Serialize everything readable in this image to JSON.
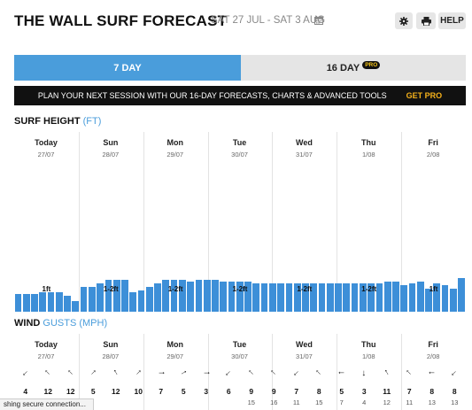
{
  "header": {
    "title": "THE WALL SURF FORECAST",
    "dates": "SAT 27 JUL - SAT 3 AUG",
    "settings_icon": "gear-icon",
    "print_icon": "printer-icon",
    "help_label": "HELP"
  },
  "tabs": [
    {
      "label": "7 DAY",
      "active": true
    },
    {
      "label": "16 DAY",
      "badge": "PRO",
      "active": false
    }
  ],
  "banner": {
    "text": "PLAN YOUR NEXT SESSION WITH OUR 16-DAY FORECASTS, CHARTS & ADVANCED TOOLS",
    "cta": "GET PRO"
  },
  "surf": {
    "title": "SURF HEIGHT",
    "unit": "(FT)"
  },
  "wind": {
    "title": "WIND",
    "unit": "GUSTS (MPH)"
  },
  "days": [
    {
      "name": "Today",
      "date": "27/07",
      "height": "1ft"
    },
    {
      "name": "Sun",
      "date": "28/07",
      "height": "1-2ft"
    },
    {
      "name": "Mon",
      "date": "29/07",
      "height": "1-2ft"
    },
    {
      "name": "Tue",
      "date": "30/07",
      "height": "1-2ft"
    },
    {
      "name": "Wed",
      "date": "31/07",
      "height": "1-2ft"
    },
    {
      "name": "Thu",
      "date": "1/08",
      "height": "1-2ft"
    },
    {
      "name": "Fri",
      "date": "2/08",
      "height": "1ft"
    }
  ],
  "chart_data": {
    "type": "bar",
    "title": "SURF HEIGHT (FT)",
    "values": [
      1.0,
      1.0,
      1.0,
      1.1,
      1.1,
      1.1,
      0.9,
      0.6,
      1.4,
      1.4,
      1.6,
      1.8,
      1.8,
      1.8,
      1.1,
      1.2,
      1.4,
      1.6,
      1.8,
      1.8,
      1.8,
      1.7,
      1.8,
      1.8,
      1.8,
      1.7,
      1.7,
      1.7,
      1.7,
      1.6,
      1.6,
      1.6,
      1.6,
      1.6,
      1.6,
      1.6,
      1.6,
      1.6,
      1.6,
      1.6,
      1.6,
      1.6,
      1.6,
      1.6,
      1.6,
      1.7,
      1.7,
      1.5,
      1.6,
      1.7,
      1.3,
      1.6,
      1.5,
      1.3,
      1.9
    ],
    "ylim": [
      0,
      10
    ]
  },
  "wind_rows": {
    "directions": [
      225,
      315,
      315,
      45,
      330,
      45,
      90,
      60,
      90,
      225,
      315,
      315,
      225,
      315,
      270,
      180,
      330,
      315,
      270,
      225
    ],
    "speeds": [
      "4",
      "12",
      "12",
      "5",
      "12",
      "10",
      "7",
      "5",
      "3",
      "6",
      "9",
      "9",
      "7",
      "8",
      "5",
      "3",
      "11",
      "7",
      "8",
      "8"
    ],
    "gusts": [
      "",
      "",
      "",
      "",
      "",
      "",
      "",
      "",
      "",
      "",
      "15",
      "16",
      "11",
      "15",
      "7",
      "4",
      "12",
      "11",
      "13",
      "13"
    ]
  },
  "status_bar": {
    "text": "shing secure connection..."
  }
}
